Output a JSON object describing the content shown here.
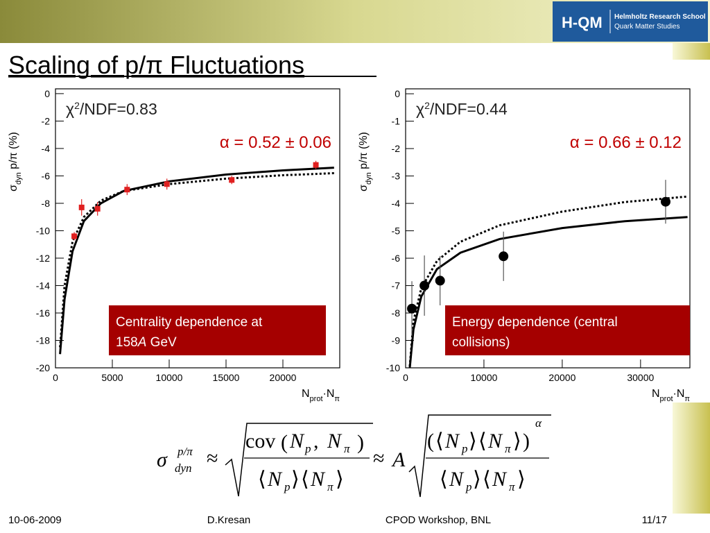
{
  "header": {
    "title": "Scaling of p/π Fluctuations",
    "logo": "H-QM",
    "logo_line1": "Helmholtz Research School",
    "logo_line2": "Quark Matter Studies"
  },
  "chart_data": [
    {
      "type": "scatter",
      "ylabel": {
        "main": "σ",
        "sub": "dyn",
        "rest": " p/π (%)"
      },
      "xlabel": {
        "main": "N",
        "sub1": "prot",
        "mid": "·N",
        "sub2": "π"
      },
      "fit_label": {
        "chi": "χ",
        "sup": "2",
        "rest": "/NDF=0.83"
      },
      "alpha_label": "α = 0.52 ± 0.06",
      "box": [
        "Centrality dependence at",
        "158",
        "A",
        " GeV"
      ],
      "xlim": [
        0,
        25000
      ],
      "xticks": [
        0,
        5000,
        10000,
        15000,
        20000
      ],
      "ylim": [
        -20,
        0.35
      ],
      "yticks": [
        0,
        -2,
        -4,
        -6,
        -8,
        -10,
        -12,
        -14,
        -16,
        -18,
        -20
      ],
      "series": [
        {
          "color": "#e02020",
          "marker": "square",
          "x": [
            1650,
            2300,
            3700,
            6300,
            9800,
            15500,
            22900
          ],
          "values": [
            -10.4,
            -8.3,
            -8.4,
            -7.0,
            -6.6,
            -6.3,
            -5.2
          ],
          "errors": [
            0.3,
            0.6,
            0.5,
            0.4,
            0.4,
            0.3,
            0.3
          ]
        }
      ],
      "fits": [
        {
          "style": "solid",
          "x": [
            400,
            800,
            1500,
            2500,
            4000,
            6000,
            10000,
            15000,
            20000,
            24500
          ],
          "y": [
            -19,
            -15,
            -11.5,
            -9.3,
            -8,
            -7.1,
            -6.4,
            -5.9,
            -5.6,
            -5.4
          ]
        },
        {
          "style": "dotted",
          "x": [
            400,
            800,
            1500,
            2500,
            4000,
            6000,
            10000,
            15000,
            20000,
            24500
          ],
          "y": [
            -18.5,
            -14,
            -10.8,
            -9,
            -7.8,
            -7.1,
            -6.6,
            -6.2,
            -5.95,
            -5.8
          ]
        }
      ]
    },
    {
      "type": "scatter",
      "ylabel": {
        "main": "σ",
        "sub": "dyn",
        "rest": " p/π (%)"
      },
      "xlabel": {
        "main": "N",
        "sub1": "prot",
        "mid": "·N",
        "sub2": "π"
      },
      "fit_label": {
        "chi": "χ",
        "sup": "2",
        "rest": "/NDF=0.44"
      },
      "alpha_label": "α = 0.66 ± 0.12",
      "box": [
        "Energy dependence (central",
        "collisions)"
      ],
      "xlim": [
        0,
        36300
      ],
      "xticks": [
        0,
        10000,
        20000,
        30000
      ],
      "ylim": [
        -10,
        0.18
      ],
      "yticks": [
        0,
        -1,
        -2,
        -3,
        -4,
        -5,
        -6,
        -7,
        -8,
        -9,
        -10
      ],
      "series": [
        {
          "color": "#000000",
          "marker": "circle",
          "x": [
            800,
            2400,
            4400,
            12500,
            33200
          ],
          "values": [
            -7.84,
            -7.0,
            -6.82,
            -5.93,
            -3.94
          ],
          "errors": [
            1.0,
            1.1,
            0.9,
            0.9,
            0.8
          ]
        }
      ],
      "fits": [
        {
          "style": "solid",
          "x": [
            400,
            1000,
            2000,
            4000,
            7000,
            12000,
            20000,
            28000,
            36000
          ],
          "y": [
            -10.4,
            -8.6,
            -7.4,
            -6.4,
            -5.8,
            -5.3,
            -4.9,
            -4.65,
            -4.5
          ]
        },
        {
          "style": "dotted",
          "x": [
            400,
            1000,
            2000,
            4000,
            7000,
            12000,
            20000,
            28000,
            36000
          ],
          "y": [
            -10.4,
            -8.3,
            -7.1,
            -6.1,
            -5.4,
            -4.8,
            -4.3,
            -3.95,
            -3.75
          ]
        }
      ]
    }
  ],
  "formula": {
    "sigma": "σ",
    "sup": "p/π",
    "sub": "dyn",
    "approx": "≈",
    "cov": "cov",
    "N": "N",
    "p": "p",
    "pi": "π",
    "comma": ",",
    "A": "A",
    "alpha": "α",
    "lparen": "(",
    "rparen": ")",
    "langle": "⟨",
    "rangle": "⟩"
  },
  "footer": {
    "date": "10-06-2009",
    "author": "D.Kresan",
    "event": "CPOD Workshop, BNL",
    "page": "11/17"
  }
}
